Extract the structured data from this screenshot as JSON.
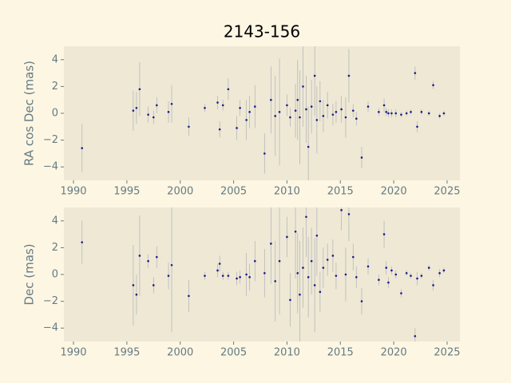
{
  "chart_data": [
    {
      "type": "scatter",
      "title": "2143-156",
      "y_label": "RA cos Dec (mas)",
      "color": "#1c1c8c",
      "errorbar_color": "#b8b8b8",
      "grid": false,
      "x": [
        1990.8,
        1995.6,
        1995.9,
        1996.2,
        1997.0,
        1997.5,
        1997.8,
        1998.9,
        1999.2,
        2000.8,
        2002.3,
        2003.5,
        2003.7,
        2004.0,
        2004.5,
        2005.3,
        2005.6,
        2006.2,
        2006.5,
        2007.0,
        2007.9,
        2008.5,
        2008.9,
        2009.3,
        2010.0,
        2010.3,
        2010.8,
        2011.0,
        2011.2,
        2011.5,
        2011.8,
        2012.0,
        2012.3,
        2012.6,
        2012.8,
        2013.1,
        2013.4,
        2013.8,
        2014.3,
        2014.6,
        2015.1,
        2015.5,
        2015.8,
        2016.2,
        2016.5,
        2017.0,
        2017.6,
        2018.6,
        2019.1,
        2019.3,
        2019.5,
        2019.8,
        2020.2,
        2020.7,
        2021.2,
        2021.6,
        2022.0,
        2022.2,
        2022.6,
        2023.3,
        2023.7,
        2024.3,
        2024.7
      ],
      "values": [
        -2.6,
        0.2,
        0.4,
        1.8,
        -0.1,
        -0.3,
        0.6,
        0.1,
        0.7,
        -1.0,
        0.4,
        0.8,
        -1.2,
        0.6,
        1.8,
        -1.1,
        0.4,
        -0.5,
        0.1,
        0.5,
        -3.0,
        1.0,
        -0.2,
        0.1,
        0.6,
        -0.3,
        0.2,
        1.0,
        -0.3,
        2.0,
        0.3,
        -2.5,
        0.5,
        2.8,
        -0.5,
        0.9,
        -0.2,
        0.6,
        -0.1,
        0.1,
        0.3,
        -0.3,
        2.8,
        0.2,
        -0.4,
        -3.3,
        0.5,
        0.1,
        0.6,
        0.1,
        0.0,
        0.0,
        0.0,
        -0.1,
        0.0,
        0.1,
        3.0,
        -1.0,
        0.1,
        0.0,
        2.1,
        -0.2,
        0.0
      ],
      "errors": [
        1.8,
        1.5,
        1.2,
        2.0,
        0.6,
        0.5,
        0.6,
        0.8,
        1.4,
        0.7,
        0.3,
        0.5,
        0.6,
        0.4,
        0.8,
        0.9,
        0.6,
        1.5,
        1.2,
        1.6,
        1.5,
        2.5,
        3.0,
        4.0,
        0.8,
        0.7,
        2.0,
        3.0,
        3.5,
        3.0,
        2.5,
        3.0,
        2.0,
        3.0,
        2.5,
        1.5,
        1.2,
        1.0,
        0.8,
        0.8,
        1.0,
        1.5,
        2.0,
        0.5,
        0.5,
        0.8,
        0.4,
        0.3,
        0.5,
        0.3,
        0.3,
        0.3,
        0.3,
        0.2,
        0.2,
        0.2,
        0.5,
        0.4,
        0.2,
        0.2,
        0.3,
        0.2,
        0.2
      ],
      "xlim": [
        1989.1,
        2026.2
      ],
      "ylim": [
        -5,
        5
      ],
      "xticks": [
        1990,
        1995,
        2000,
        2005,
        2010,
        2015,
        2020,
        2025
      ],
      "yticks": [
        {
          "value": -4,
          "label": "−4"
        },
        {
          "value": -2,
          "label": "−2"
        },
        0,
        2,
        4
      ]
    },
    {
      "type": "scatter",
      "y_label": "Dec (mas)",
      "color": "#1c1c8c",
      "errorbar_color": "#b8b8b8",
      "grid": false,
      "x": [
        1990.8,
        1995.6,
        1995.9,
        1996.2,
        1997.0,
        1997.5,
        1997.8,
        1998.9,
        1999.2,
        2000.8,
        2002.3,
        2003.5,
        2003.7,
        2004.0,
        2004.5,
        2005.3,
        2005.6,
        2006.2,
        2006.5,
        2007.0,
        2007.9,
        2008.5,
        2008.9,
        2009.3,
        2010.0,
        2010.3,
        2010.8,
        2011.0,
        2011.2,
        2011.5,
        2011.8,
        2012.0,
        2012.3,
        2012.6,
        2012.8,
        2013.1,
        2013.4,
        2013.8,
        2014.3,
        2014.6,
        2015.1,
        2015.5,
        2015.8,
        2016.2,
        2016.5,
        2017.0,
        2017.6,
        2018.6,
        2019.1,
        2019.3,
        2019.5,
        2019.8,
        2020.2,
        2020.7,
        2021.2,
        2021.6,
        2022.0,
        2022.2,
        2022.6,
        2023.3,
        2023.7,
        2024.3,
        2024.7
      ],
      "values": [
        2.4,
        -0.8,
        -1.5,
        1.4,
        1.0,
        -0.8,
        1.3,
        -0.1,
        0.7,
        -1.6,
        -0.1,
        0.3,
        0.8,
        -0.1,
        -0.1,
        -0.3,
        -0.2,
        0.0,
        -0.2,
        1.0,
        0.1,
        2.3,
        -0.5,
        1.0,
        2.8,
        -1.9,
        3.2,
        0.1,
        -1.5,
        0.5,
        4.3,
        -0.2,
        1.0,
        -0.8,
        2.9,
        -1.3,
        0.5,
        1.1,
        1.4,
        -0.1,
        4.8,
        0.0,
        4.5,
        1.3,
        -0.2,
        -2.0,
        0.6,
        -0.4,
        3.0,
        0.5,
        -0.6,
        0.3,
        0.0,
        -1.4,
        0.1,
        -0.1,
        -4.6,
        -0.3,
        -0.1,
        0.5,
        -0.8,
        0.1,
        0.3
      ],
      "errors": [
        1.6,
        3.0,
        1.5,
        3.0,
        0.5,
        0.6,
        0.8,
        1.0,
        5.0,
        1.2,
        0.3,
        0.5,
        0.6,
        0.3,
        0.3,
        0.5,
        0.5,
        1.6,
        1.0,
        1.5,
        1.8,
        3.0,
        3.0,
        4.0,
        1.5,
        2.0,
        3.5,
        3.0,
        4.0,
        3.0,
        3.0,
        3.0,
        2.5,
        3.5,
        3.0,
        1.5,
        1.5,
        1.2,
        1.2,
        1.0,
        1.5,
        2.0,
        2.0,
        1.0,
        0.8,
        1.0,
        0.6,
        0.4,
        1.0,
        0.5,
        0.4,
        0.3,
        0.3,
        0.3,
        0.2,
        0.2,
        0.6,
        0.5,
        0.2,
        0.2,
        0.4,
        0.3,
        0.2
      ],
      "xlim": [
        1989.1,
        2026.2
      ],
      "ylim": [
        -5,
        5
      ],
      "xticks": [
        1990,
        1995,
        2000,
        2005,
        2010,
        2015,
        2020,
        2025
      ],
      "yticks": [
        {
          "value": -4,
          "label": "−4"
        },
        {
          "value": -2,
          "label": "−2"
        },
        0,
        2,
        4
      ]
    }
  ]
}
